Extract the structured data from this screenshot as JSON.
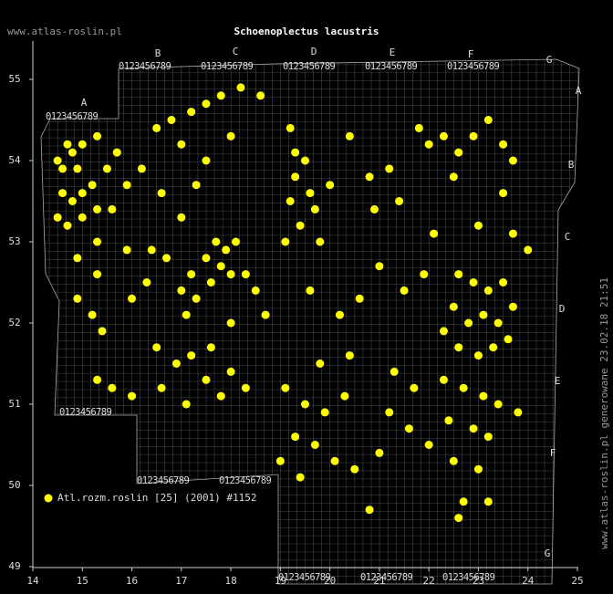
{
  "header": {
    "site": "www.atlas-roslin.pl",
    "title": "Schoenoplectus lacustris"
  },
  "footer": {
    "generated": "www.atlas-roslin.pl generowane 23.02.18 21:51"
  },
  "legend": {
    "label": "Atl.rozm.roslin [25] (2001) #1152",
    "color": "#ffff00"
  },
  "map": {
    "xlim": [
      14,
      25
    ],
    "ylim": [
      49,
      55.5
    ],
    "xticks": [
      14,
      15,
      16,
      17,
      18,
      19,
      20,
      21,
      22,
      23,
      24,
      25
    ],
    "yticks": [
      49,
      50,
      51,
      52,
      53,
      54,
      55
    ],
    "grid_columns": [
      "A",
      "B",
      "C",
      "D",
      "E",
      "F",
      "G"
    ],
    "grid_rows": [
      "A",
      "B",
      "C",
      "D",
      "E",
      "F",
      "G"
    ],
    "digits": "0123456789",
    "points": [
      [
        14.5,
        54.0
      ],
      [
        14.6,
        53.9
      ],
      [
        14.7,
        54.2
      ],
      [
        14.8,
        54.1
      ],
      [
        14.9,
        53.9
      ],
      [
        15.0,
        54.2
      ],
      [
        14.6,
        53.6
      ],
      [
        14.8,
        53.5
      ],
      [
        15.0,
        53.6
      ],
      [
        15.2,
        53.7
      ],
      [
        14.5,
        53.3
      ],
      [
        14.7,
        53.2
      ],
      [
        15.0,
        53.3
      ],
      [
        15.3,
        53.4
      ],
      [
        15.5,
        53.9
      ],
      [
        15.7,
        54.1
      ],
      [
        15.3,
        54.3
      ],
      [
        15.9,
        53.7
      ],
      [
        15.6,
        53.4
      ],
      [
        15.3,
        53.0
      ],
      [
        14.9,
        52.8
      ],
      [
        15.3,
        52.6
      ],
      [
        14.9,
        52.3
      ],
      [
        15.2,
        52.1
      ],
      [
        15.4,
        51.9
      ],
      [
        15.3,
        51.3
      ],
      [
        16.0,
        51.1
      ],
      [
        15.9,
        52.9
      ],
      [
        16.3,
        52.5
      ],
      [
        16.0,
        52.3
      ],
      [
        16.5,
        54.4
      ],
      [
        16.8,
        54.5
      ],
      [
        17.2,
        54.6
      ],
      [
        17.5,
        54.7
      ],
      [
        17.8,
        54.8
      ],
      [
        18.2,
        54.9
      ],
      [
        18.6,
        54.8
      ],
      [
        17.0,
        54.2
      ],
      [
        17.5,
        54.0
      ],
      [
        18.0,
        54.3
      ],
      [
        16.2,
        53.9
      ],
      [
        16.6,
        53.6
      ],
      [
        17.3,
        53.7
      ],
      [
        17.0,
        53.3
      ],
      [
        17.7,
        53.0
      ],
      [
        17.9,
        52.9
      ],
      [
        18.1,
        53.0
      ],
      [
        17.8,
        52.7
      ],
      [
        18.0,
        52.6
      ],
      [
        17.5,
        52.8
      ],
      [
        17.2,
        52.6
      ],
      [
        17.0,
        52.4
      ],
      [
        17.3,
        52.3
      ],
      [
        17.6,
        52.5
      ],
      [
        17.1,
        52.1
      ],
      [
        16.7,
        52.8
      ],
      [
        16.4,
        52.9
      ],
      [
        18.3,
        52.6
      ],
      [
        18.5,
        52.4
      ],
      [
        18.7,
        52.1
      ],
      [
        18.0,
        52.0
      ],
      [
        19.2,
        54.4
      ],
      [
        19.3,
        54.1
      ],
      [
        19.5,
        54.0
      ],
      [
        19.3,
        53.8
      ],
      [
        19.6,
        53.6
      ],
      [
        19.2,
        53.5
      ],
      [
        19.7,
        53.4
      ],
      [
        19.4,
        53.2
      ],
      [
        19.8,
        53.0
      ],
      [
        19.1,
        53.0
      ],
      [
        20.0,
        53.7
      ],
      [
        20.4,
        54.3
      ],
      [
        20.8,
        53.8
      ],
      [
        21.2,
        53.9
      ],
      [
        21.4,
        53.5
      ],
      [
        20.9,
        53.4
      ],
      [
        21.8,
        54.4
      ],
      [
        22.0,
        54.2
      ],
      [
        22.3,
        54.3
      ],
      [
        22.6,
        54.1
      ],
      [
        22.9,
        54.3
      ],
      [
        23.2,
        54.5
      ],
      [
        23.5,
        54.2
      ],
      [
        23.7,
        54.0
      ],
      [
        22.5,
        53.8
      ],
      [
        23.5,
        53.6
      ],
      [
        23.0,
        53.2
      ],
      [
        22.1,
        53.1
      ],
      [
        23.7,
        53.1
      ],
      [
        24.0,
        52.9
      ],
      [
        22.6,
        52.6
      ],
      [
        22.9,
        52.5
      ],
      [
        23.2,
        52.4
      ],
      [
        23.5,
        52.5
      ],
      [
        22.5,
        52.2
      ],
      [
        22.8,
        52.0
      ],
      [
        23.1,
        52.1
      ],
      [
        23.4,
        52.0
      ],
      [
        23.7,
        52.2
      ],
      [
        22.6,
        51.7
      ],
      [
        23.0,
        51.6
      ],
      [
        23.3,
        51.7
      ],
      [
        23.6,
        51.8
      ],
      [
        22.3,
        51.9
      ],
      [
        21.9,
        52.6
      ],
      [
        21.5,
        52.4
      ],
      [
        21.0,
        52.7
      ],
      [
        20.6,
        52.3
      ],
      [
        20.2,
        52.1
      ],
      [
        19.6,
        52.4
      ],
      [
        22.3,
        51.3
      ],
      [
        22.7,
        51.2
      ],
      [
        23.1,
        51.1
      ],
      [
        23.4,
        51.0
      ],
      [
        23.8,
        50.9
      ],
      [
        22.4,
        50.8
      ],
      [
        22.9,
        50.7
      ],
      [
        23.2,
        50.6
      ],
      [
        22.0,
        50.5
      ],
      [
        21.6,
        50.7
      ],
      [
        21.2,
        50.9
      ],
      [
        21.0,
        50.4
      ],
      [
        22.5,
        50.3
      ],
      [
        23.0,
        50.2
      ],
      [
        22.7,
        49.8
      ],
      [
        22.6,
        49.6
      ],
      [
        23.2,
        49.8
      ],
      [
        19.1,
        51.2
      ],
      [
        19.5,
        51.0
      ],
      [
        19.9,
        50.9
      ],
      [
        20.3,
        51.1
      ],
      [
        19.3,
        50.6
      ],
      [
        19.7,
        50.5
      ],
      [
        20.1,
        50.3
      ],
      [
        19.0,
        50.3
      ],
      [
        19.4,
        50.1
      ],
      [
        20.5,
        50.2
      ],
      [
        20.8,
        49.7
      ],
      [
        19.8,
        51.5
      ],
      [
        20.4,
        51.6
      ],
      [
        21.3,
        51.4
      ],
      [
        21.7,
        51.2
      ],
      [
        16.5,
        51.7
      ],
      [
        16.9,
        51.5
      ],
      [
        17.2,
        51.6
      ],
      [
        17.5,
        51.3
      ],
      [
        17.8,
        51.1
      ],
      [
        16.6,
        51.2
      ],
      [
        17.1,
        51.0
      ],
      [
        18.0,
        51.4
      ],
      [
        18.3,
        51.2
      ],
      [
        17.6,
        51.7
      ],
      [
        15.6,
        51.2
      ]
    ]
  }
}
